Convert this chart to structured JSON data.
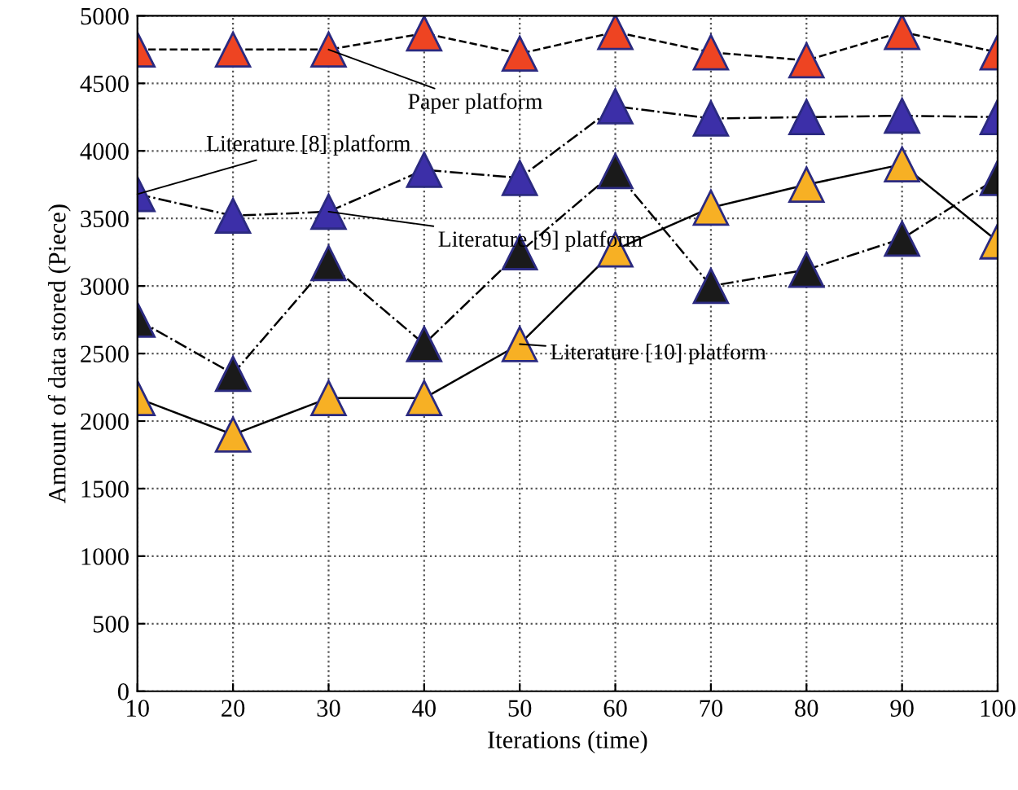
{
  "chart_data": {
    "type": "line",
    "xlabel": "Iterations (time)",
    "ylabel": "Amount of data stored (Piece)",
    "x": [
      10,
      20,
      30,
      40,
      50,
      60,
      70,
      80,
      90,
      100
    ],
    "series": [
      {
        "color": "#ee4422",
        "line_style": "dashed",
        "values": [
          4750,
          4750,
          4750,
          4870,
          4720,
          4880,
          4730,
          4670,
          4880,
          4730
        ]
      },
      {
        "color": "#3c2fa8",
        "line_style": "dashdot",
        "values": [
          3680,
          3520,
          3550,
          3860,
          3800,
          4330,
          4240,
          4250,
          4260,
          4250
        ]
      },
      {
        "color": "#1a1a1a",
        "line_style": "dashdot",
        "values": [
          2750,
          2350,
          3170,
          2570,
          3250,
          3850,
          3000,
          3120,
          3350,
          3800
        ]
      },
      {
        "color": "#f7b024",
        "line_style": "solid",
        "values": [
          2170,
          1900,
          2170,
          2170,
          2570,
          3270,
          3580,
          3750,
          3900,
          3330
        ]
      }
    ],
    "annotations": [
      {
        "text": "Paper platform",
        "x": 30,
        "y": 4750
      },
      {
        "text": "Literature [8] platform",
        "x": 10,
        "y": 3680
      },
      {
        "text": "Literature [9] platform",
        "x": 30,
        "y": 3550
      },
      {
        "text": "Literature [10] platform",
        "x": 50,
        "y": 2570
      }
    ],
    "xlim": [
      10,
      100
    ],
    "xticks": [
      10,
      20,
      30,
      40,
      50,
      60,
      70,
      80,
      90,
      100
    ],
    "ylim": [
      0,
      5000
    ],
    "yticks": [
      0,
      500,
      1000,
      1500,
      2000,
      2500,
      3000,
      3500,
      4000,
      4500,
      5000
    ],
    "grid": true,
    "marker": "triangle"
  }
}
